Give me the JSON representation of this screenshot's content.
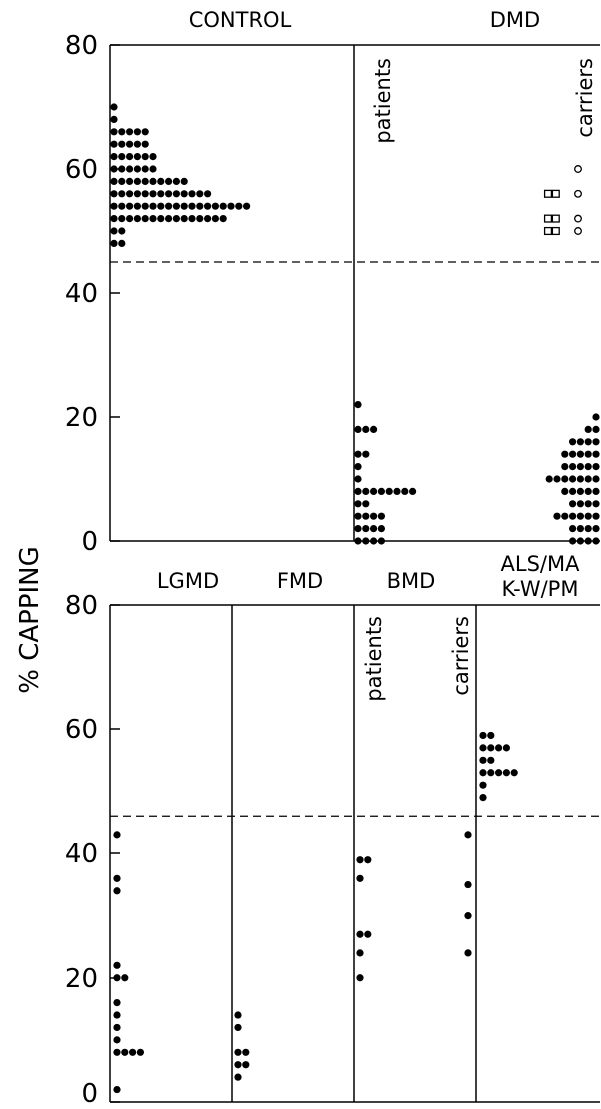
{
  "chart_data": {
    "type": "scatter",
    "ylabel": "% CAPPING",
    "panels": [
      {
        "row": "top",
        "ylim": [
          0,
          80
        ],
        "yticks": [
          0,
          20,
          40,
          60,
          80
        ],
        "threshold": 45,
        "groups": [
          {
            "name": "CONTROL",
            "series": [
              {
                "name": "",
                "marker": "dot",
                "y": [
                  48,
                  50,
                  52,
                  54,
                  56,
                  58,
                  60,
                  62,
                  64,
                  66,
                  68,
                  70
                ],
                "counts": [
                  2,
                  2,
                  15,
                  18,
                  13,
                  10,
                  6,
                  6,
                  5,
                  5,
                  1,
                  1
                ]
              }
            ]
          },
          {
            "name": "DMD",
            "series": [
              {
                "name": "patients",
                "marker": "dot",
                "y": [
                  0,
                  2,
                  4,
                  6,
                  8,
                  10,
                  12,
                  14,
                  16,
                  18,
                  20,
                  22
                ],
                "counts": [
                  4,
                  4,
                  4,
                  2,
                  8,
                  1,
                  1,
                  2,
                  0,
                  3,
                  0,
                  1
                ]
              },
              {
                "name": "carriers",
                "marker": "dot",
                "y": [
                  0,
                  2,
                  4,
                  6,
                  8,
                  10,
                  12,
                  14,
                  16,
                  18,
                  20
                ],
                "counts": [
                  4,
                  4,
                  6,
                  4,
                  5,
                  7,
                  5,
                  5,
                  4,
                  2,
                  1
                ]
              },
              {
                "name": "carriers",
                "marker": "square",
                "y": [
                  50,
                  52,
                  56
                ],
                "counts": [
                  2,
                  2,
                  2
                ]
              },
              {
                "name": "carriers",
                "marker": "circle",
                "y": [
                  50,
                  52,
                  56,
                  60
                ],
                "counts": [
                  1,
                  1,
                  1,
                  1
                ]
              }
            ]
          }
        ]
      },
      {
        "row": "bottom",
        "ylim": [
          0,
          80
        ],
        "yticks": [
          0,
          20,
          40,
          60,
          80
        ],
        "threshold": 46,
        "groups": [
          {
            "name": "LGMD",
            "series": [
              {
                "name": "",
                "marker": "dot",
                "y": [
                  2,
                  8,
                  10,
                  12,
                  14,
                  16,
                  20,
                  22,
                  34,
                  36,
                  43
                ],
                "counts": [
                  1,
                  4,
                  1,
                  1,
                  1,
                  1,
                  2,
                  1,
                  1,
                  1,
                  1
                ]
              }
            ]
          },
          {
            "name": "FMD",
            "series": [
              {
                "name": "",
                "marker": "dot",
                "y": [
                  4,
                  6,
                  8,
                  12,
                  14
                ],
                "counts": [
                  1,
                  2,
                  2,
                  1,
                  1
                ]
              }
            ]
          },
          {
            "name": "BMD",
            "series": [
              {
                "name": "patients",
                "marker": "dot",
                "y": [
                  20,
                  24,
                  27,
                  36,
                  39
                ],
                "counts": [
                  1,
                  1,
                  2,
                  1,
                  2
                ]
              },
              {
                "name": "carriers",
                "marker": "dot",
                "y": [
                  24,
                  30,
                  35,
                  43
                ],
                "counts": [
                  1,
                  1,
                  1,
                  1
                ]
              }
            ]
          },
          {
            "name": "ALS/MA",
            "name2": "K-W/PM",
            "series": [
              {
                "name": "",
                "marker": "dot",
                "y": [
                  49,
                  51,
                  53,
                  55,
                  57,
                  59
                ],
                "counts": [
                  1,
                  1,
                  5,
                  2,
                  4,
                  2
                ]
              }
            ]
          }
        ]
      }
    ]
  }
}
